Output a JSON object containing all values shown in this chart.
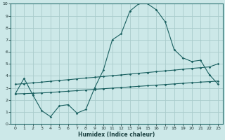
{
  "xlabel": "Humidex (Indice chaleur)",
  "xlim": [
    -0.5,
    23.5
  ],
  "ylim": [
    0,
    10
  ],
  "bg_color": "#cce8e8",
  "grid_color": "#aacccc",
  "line_color": "#1a6060",
  "curve_main_x": [
    0,
    1,
    2,
    3,
    4,
    5,
    6,
    7,
    8,
    9,
    10,
    11,
    12,
    13,
    14,
    15,
    16,
    17,
    18,
    19,
    20,
    21,
    22,
    23
  ],
  "curve_main_y": [
    2.5,
    3.8,
    2.4,
    1.1,
    0.6,
    1.5,
    1.6,
    0.9,
    1.2,
    3.0,
    4.5,
    7.0,
    7.5,
    9.4,
    10.0,
    10.0,
    9.5,
    8.5,
    6.2,
    5.5,
    5.2,
    5.3,
    4.1,
    3.3
  ],
  "curve_upper_x": [
    0,
    1,
    2,
    3,
    4,
    5,
    6,
    7,
    8,
    9,
    10,
    11,
    12,
    13,
    14,
    15,
    16,
    17,
    18,
    19,
    20,
    21,
    22,
    23
  ],
  "curve_upper_y": [
    3.3,
    3.35,
    3.42,
    3.48,
    3.55,
    3.62,
    3.68,
    3.75,
    3.82,
    3.88,
    3.95,
    4.02,
    4.08,
    4.15,
    4.22,
    4.28,
    4.35,
    4.42,
    4.48,
    4.55,
    4.62,
    4.68,
    4.75,
    5.0
  ],
  "curve_lower_x": [
    0,
    1,
    2,
    3,
    4,
    5,
    6,
    7,
    8,
    9,
    10,
    11,
    12,
    13,
    14,
    15,
    16,
    17,
    18,
    19,
    20,
    21,
    22,
    23
  ],
  "curve_lower_y": [
    2.5,
    2.52,
    2.55,
    2.58,
    2.62,
    2.67,
    2.72,
    2.77,
    2.82,
    2.88,
    2.93,
    2.98,
    3.03,
    3.08,
    3.13,
    3.18,
    3.23,
    3.28,
    3.33,
    3.38,
    3.43,
    3.48,
    3.52,
    3.57
  ],
  "xticks": [
    0,
    1,
    2,
    3,
    4,
    5,
    6,
    7,
    8,
    9,
    10,
    11,
    12,
    13,
    14,
    15,
    16,
    17,
    18,
    19,
    20,
    21,
    22,
    23
  ],
  "yticks": [
    0,
    1,
    2,
    3,
    4,
    5,
    6,
    7,
    8,
    9,
    10
  ]
}
